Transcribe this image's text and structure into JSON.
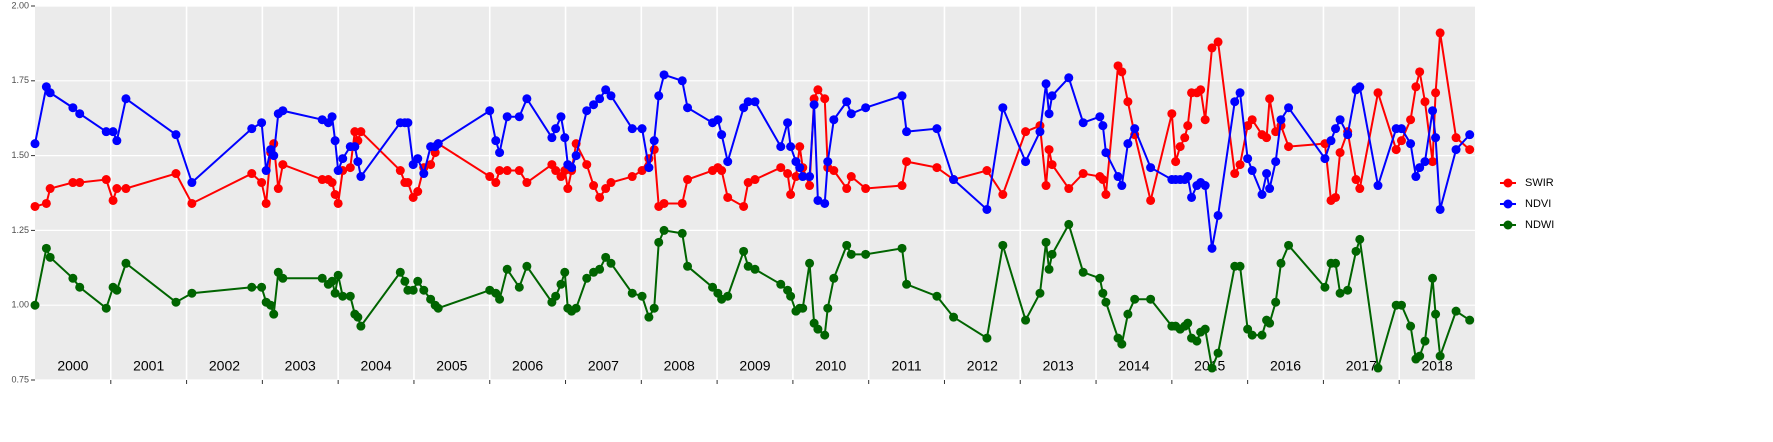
{
  "chart_data": {
    "type": "line",
    "x": [
      2000.0,
      2000.15,
      2000.2,
      2000.5,
      2000.59,
      2000.94,
      2001.03,
      2001.08,
      2001.2,
      2001.86,
      2002.07,
      2002.86,
      2002.99,
      2003.05,
      2003.11,
      2003.15,
      2003.21,
      2003.27,
      2003.79,
      2003.87,
      2003.92,
      2003.96,
      2004.0,
      2004.06,
      2004.16,
      2004.22,
      2004.26,
      2004.3,
      2004.82,
      2004.88,
      2004.92,
      2004.99,
      2005.05,
      2005.13,
      2005.22,
      2005.28,
      2005.32,
      2006.0,
      2006.08,
      2006.13,
      2006.23,
      2006.39,
      2006.49,
      2006.82,
      2006.87,
      2006.94,
      2006.99,
      2007.03,
      2007.08,
      2007.14,
      2007.28,
      2007.37,
      2007.45,
      2007.53,
      2007.6,
      2007.88,
      2008.01,
      2008.1,
      2008.17,
      2008.23,
      2008.3,
      2008.54,
      2008.61,
      2008.94,
      2009.01,
      2009.06,
      2009.14,
      2009.35,
      2009.41,
      2009.5,
      2009.84,
      2009.93,
      2009.97,
      2010.04,
      2010.09,
      2010.13,
      2010.22,
      2010.28,
      2010.33,
      2010.42,
      2010.46,
      2010.54,
      2010.71,
      2010.77,
      2010.96,
      2011.44,
      2011.5,
      2011.9,
      2012.12,
      2012.56,
      2012.77,
      2013.07,
      2013.26,
      2013.34,
      2013.38,
      2013.42,
      2013.64,
      2013.83,
      2014.05,
      2014.09,
      2014.13,
      2014.29,
      2014.34,
      2014.42,
      2014.51,
      2014.72,
      2015.0,
      2015.05,
      2015.11,
      2015.17,
      2015.21,
      2015.26,
      2015.33,
      2015.38,
      2015.44,
      2015.53,
      2015.61,
      2015.83,
      2015.9,
      2016.0,
      2016.06,
      2016.19,
      2016.25,
      2016.29,
      2016.37,
      2016.44,
      2016.54,
      2017.02,
      2017.1,
      2017.16,
      2017.22,
      2017.32,
      2017.43,
      2017.48,
      2017.72,
      2017.96,
      2018.03,
      2018.15,
      2018.22,
      2018.27,
      2018.34,
      2018.44,
      2018.48,
      2018.54,
      2018.75,
      2018.93
    ],
    "series": [
      {
        "name": "SWIR",
        "color": "#ff0000",
        "values": [
          1.33,
          1.34,
          1.39,
          1.41,
          1.41,
          1.42,
          1.35,
          1.39,
          1.39,
          1.44,
          1.34,
          1.44,
          1.41,
          1.34,
          1.51,
          1.54,
          1.39,
          1.47,
          1.42,
          1.42,
          1.41,
          1.37,
          1.34,
          1.45,
          1.46,
          1.58,
          1.55,
          1.58,
          1.45,
          1.41,
          1.41,
          1.36,
          1.38,
          1.46,
          1.47,
          1.51,
          1.54,
          1.43,
          1.41,
          1.45,
          1.45,
          1.45,
          1.41,
          1.47,
          1.45,
          1.43,
          1.45,
          1.39,
          1.45,
          1.54,
          1.47,
          1.4,
          1.36,
          1.39,
          1.41,
          1.43,
          1.45,
          1.49,
          1.52,
          1.33,
          1.34,
          1.34,
          1.42,
          1.45,
          1.46,
          1.45,
          1.36,
          1.33,
          1.41,
          1.42,
          1.46,
          1.44,
          1.37,
          1.43,
          1.53,
          1.46,
          1.4,
          1.69,
          1.72,
          1.69,
          1.46,
          1.45,
          1.39,
          1.43,
          1.39,
          1.4,
          1.48,
          1.46,
          1.42,
          1.45,
          1.37,
          1.58,
          1.6,
          1.4,
          1.52,
          1.47,
          1.39,
          1.44,
          1.43,
          1.42,
          1.37,
          1.8,
          1.78,
          1.68,
          1.57,
          1.35,
          1.64,
          1.48,
          1.53,
          1.56,
          1.6,
          1.71,
          1.71,
          1.72,
          1.62,
          1.86,
          1.88,
          1.44,
          1.47,
          1.6,
          1.62,
          1.57,
          1.56,
          1.69,
          1.58,
          1.6,
          1.53,
          1.54,
          1.35,
          1.36,
          1.51,
          1.58,
          1.42,
          1.39,
          1.71,
          1.52,
          1.55,
          1.62,
          1.73,
          1.78,
          1.68,
          1.48,
          1.71,
          1.91,
          1.56,
          1.52
        ]
      },
      {
        "name": "NDVI",
        "color": "#0000ff",
        "values": [
          1.54,
          1.73,
          1.71,
          1.66,
          1.64,
          1.58,
          1.58,
          1.55,
          1.69,
          1.57,
          1.41,
          1.59,
          1.61,
          1.45,
          1.52,
          1.5,
          1.64,
          1.65,
          1.62,
          1.61,
          1.63,
          1.55,
          1.45,
          1.49,
          1.53,
          1.53,
          1.48,
          1.43,
          1.61,
          1.61,
          1.61,
          1.47,
          1.49,
          1.44,
          1.53,
          1.53,
          1.54,
          1.65,
          1.55,
          1.51,
          1.63,
          1.63,
          1.69,
          1.56,
          1.59,
          1.63,
          1.56,
          1.47,
          1.46,
          1.5,
          1.65,
          1.67,
          1.69,
          1.72,
          1.7,
          1.59,
          1.59,
          1.46,
          1.55,
          1.7,
          1.77,
          1.75,
          1.66,
          1.61,
          1.62,
          1.57,
          1.48,
          1.66,
          1.68,
          1.68,
          1.53,
          1.61,
          1.53,
          1.48,
          1.46,
          1.43,
          1.43,
          1.67,
          1.35,
          1.34,
          1.48,
          1.62,
          1.68,
          1.64,
          1.66,
          1.7,
          1.58,
          1.59,
          1.42,
          1.32,
          1.66,
          1.48,
          1.58,
          1.74,
          1.64,
          1.7,
          1.76,
          1.61,
          1.63,
          1.6,
          1.51,
          1.43,
          1.4,
          1.54,
          1.59,
          1.46,
          1.42,
          1.42,
          1.42,
          1.42,
          1.43,
          1.36,
          1.4,
          1.41,
          1.4,
          1.19,
          1.3,
          1.68,
          1.71,
          1.49,
          1.45,
          1.37,
          1.44,
          1.39,
          1.48,
          1.62,
          1.66,
          1.49,
          1.55,
          1.59,
          1.62,
          1.57,
          1.72,
          1.73,
          1.4,
          1.59,
          1.59,
          1.54,
          1.43,
          1.46,
          1.48,
          1.65,
          1.56,
          1.32,
          1.52,
          1.57
        ]
      },
      {
        "name": "NDWI",
        "color": "#006400",
        "values": [
          1.0,
          1.19,
          1.16,
          1.09,
          1.06,
          0.99,
          1.06,
          1.05,
          1.14,
          1.01,
          1.04,
          1.06,
          1.06,
          1.01,
          1.0,
          0.97,
          1.11,
          1.09,
          1.09,
          1.07,
          1.08,
          1.04,
          1.1,
          1.03,
          1.03,
          0.97,
          0.96,
          0.93,
          1.11,
          1.08,
          1.05,
          1.05,
          1.08,
          1.05,
          1.02,
          1.0,
          0.99,
          1.05,
          1.04,
          1.02,
          1.12,
          1.06,
          1.13,
          1.01,
          1.03,
          1.07,
          1.11,
          0.99,
          0.98,
          0.99,
          1.09,
          1.11,
          1.12,
          1.16,
          1.14,
          1.04,
          1.03,
          0.96,
          0.99,
          1.21,
          1.25,
          1.24,
          1.13,
          1.06,
          1.04,
          1.02,
          1.03,
          1.18,
          1.13,
          1.12,
          1.07,
          1.05,
          1.03,
          0.98,
          0.99,
          0.99,
          1.14,
          0.94,
          0.92,
          0.9,
          0.99,
          1.09,
          1.2,
          1.17,
          1.17,
          1.19,
          1.07,
          1.03,
          0.96,
          0.89,
          1.2,
          0.95,
          1.04,
          1.21,
          1.12,
          1.17,
          1.27,
          1.11,
          1.09,
          1.04,
          1.01,
          0.89,
          0.87,
          0.97,
          1.02,
          1.02,
          0.93,
          0.93,
          0.92,
          0.93,
          0.94,
          0.89,
          0.88,
          0.91,
          0.92,
          0.79,
          0.84,
          1.13,
          1.13,
          0.92,
          0.9,
          0.9,
          0.95,
          0.94,
          1.01,
          1.14,
          1.2,
          1.06,
          1.14,
          1.14,
          1.04,
          1.05,
          1.18,
          1.22,
          0.79,
          1.0,
          1.0,
          0.93,
          0.82,
          0.83,
          0.88,
          1.09,
          0.97,
          0.83,
          0.98,
          0.95
        ]
      }
    ],
    "xlim": [
      2000,
      2019
    ],
    "xticks": [
      2001,
      2002,
      2003,
      2004,
      2005,
      2006,
      2007,
      2008,
      2009,
      2010,
      2011,
      2012,
      2013,
      2014,
      2015,
      2016,
      2017,
      2018
    ],
    "xtick_labels": [
      {
        "value": 2000.5,
        "label": "2000"
      },
      {
        "value": 2001.5,
        "label": "2001"
      },
      {
        "value": 2002.5,
        "label": "2002"
      },
      {
        "value": 2003.5,
        "label": "2003"
      },
      {
        "value": 2004.5,
        "label": "2004"
      },
      {
        "value": 2005.5,
        "label": "2005"
      },
      {
        "value": 2006.5,
        "label": "2006"
      },
      {
        "value": 2007.5,
        "label": "2007"
      },
      {
        "value": 2008.5,
        "label": "2008"
      },
      {
        "value": 2009.5,
        "label": "2009"
      },
      {
        "value": 2010.5,
        "label": "2010"
      },
      {
        "value": 2011.5,
        "label": "2011"
      },
      {
        "value": 2012.5,
        "label": "2012"
      },
      {
        "value": 2013.5,
        "label": "2013"
      },
      {
        "value": 2014.5,
        "label": "2014"
      },
      {
        "value": 2015.5,
        "label": "2015"
      },
      {
        "value": 2016.5,
        "label": "2016"
      },
      {
        "value": 2017.5,
        "label": "2017"
      },
      {
        "value": 2018.5,
        "label": "2018"
      }
    ],
    "ylim": [
      0.75,
      2
    ],
    "yticks": [
      {
        "value": 0.75,
        "label": "0.75"
      },
      {
        "value": 1,
        "label": "1.00"
      },
      {
        "value": 1.25,
        "label": "1.25"
      },
      {
        "value": 1.5,
        "label": "1.50"
      },
      {
        "value": 1.75,
        "label": "1.75"
      },
      {
        "value": 2,
        "label": "2.00"
      }
    ],
    "grid": true,
    "legend": "right"
  }
}
